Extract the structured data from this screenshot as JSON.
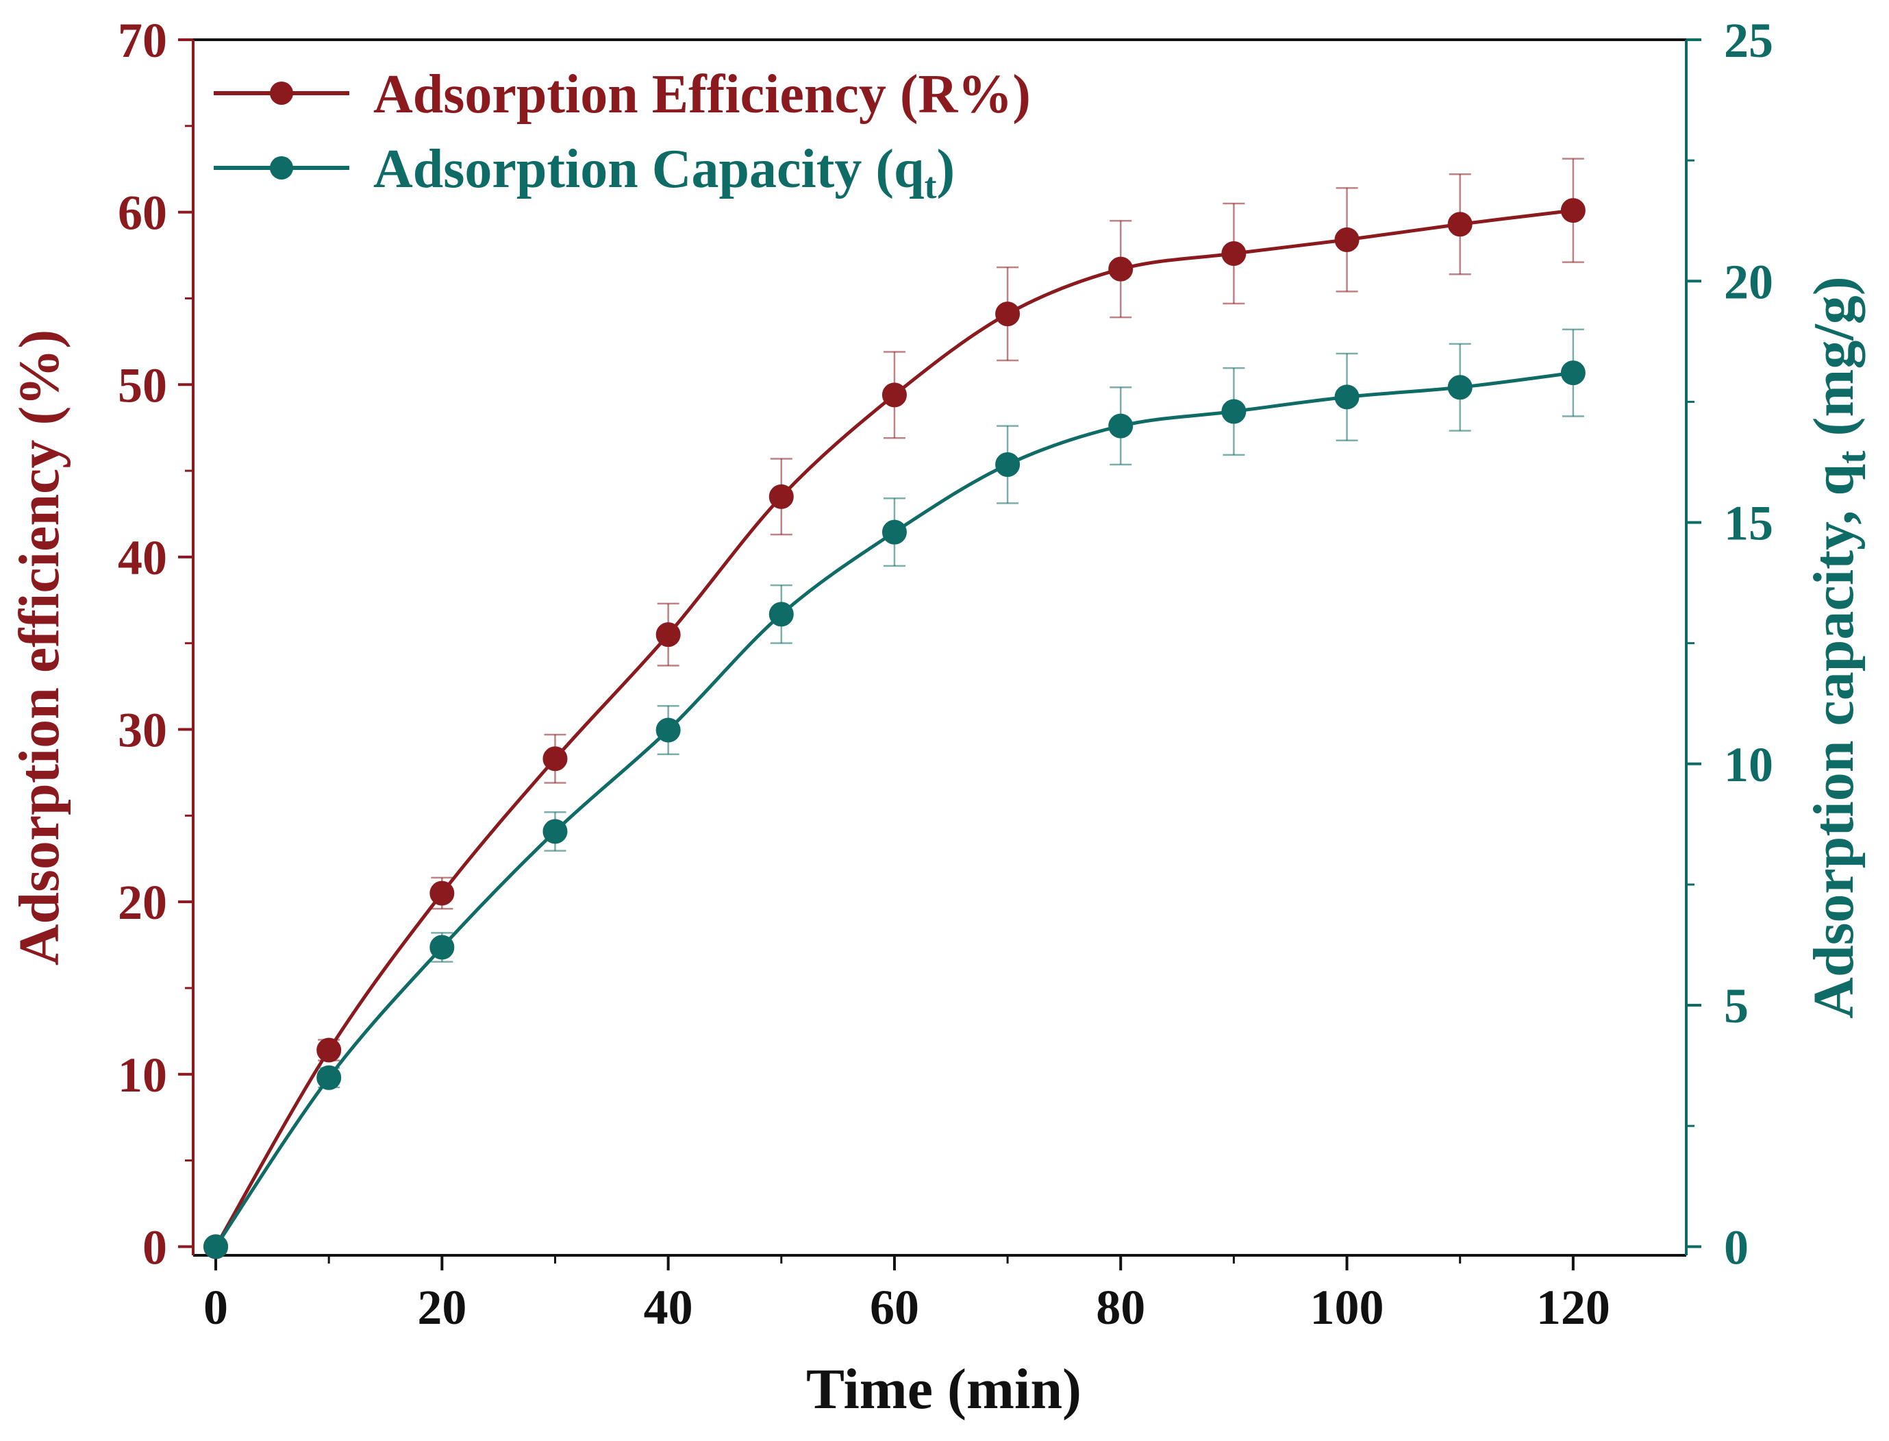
{
  "chart_data": {
    "type": "line",
    "title": "",
    "x": [
      0,
      10,
      20,
      30,
      40,
      50,
      60,
      70,
      80,
      90,
      100,
      110,
      120
    ],
    "xlabel": "Time (min)",
    "xlim": [
      -2,
      130
    ],
    "xticks": [
      0,
      20,
      40,
      60,
      80,
      100,
      120
    ],
    "grid": false,
    "legend_position": "top-left",
    "series": [
      {
        "name": "Adsorption Efficiency (R%)",
        "axis": "left",
        "color": "#8b1a1f",
        "values": [
          0,
          11.4,
          20.5,
          28.3,
          35.5,
          43.5,
          49.4,
          54.1,
          56.7,
          57.6,
          58.4,
          59.3,
          60.1
        ],
        "errors": [
          0,
          0.6,
          0.9,
          1.4,
          1.8,
          2.2,
          2.5,
          2.7,
          2.8,
          2.9,
          3.0,
          2.9,
          3.0
        ]
      },
      {
        "name": "Adsorption Capacity (q",
        "name_subscript": "t",
        "name_suffix": ")",
        "axis": "right",
        "color": "#0e6b66",
        "values": [
          0,
          3.5,
          6.2,
          8.6,
          10.7,
          13.1,
          14.8,
          16.2,
          17.0,
          17.3,
          17.6,
          17.8,
          18.1
        ],
        "errors": [
          0,
          0.2,
          0.3,
          0.4,
          0.5,
          0.6,
          0.7,
          0.8,
          0.8,
          0.9,
          0.9,
          0.9,
          0.9
        ]
      }
    ],
    "y_left": {
      "label": "Adsorption efficiency (%)",
      "lim": [
        -0.5,
        70
      ],
      "ticks": [
        0,
        10,
        20,
        30,
        40,
        50,
        60,
        70
      ],
      "color": "#8b1a1f"
    },
    "y_right": {
      "label": "Adsorption capacity, q",
      "label_subscript": "t",
      "label_suffix": " (mg/g)",
      "lim": [
        -0.18,
        25
      ],
      "ticks": [
        0,
        5,
        10,
        15,
        20,
        25
      ],
      "color": "#0e6b66"
    }
  }
}
